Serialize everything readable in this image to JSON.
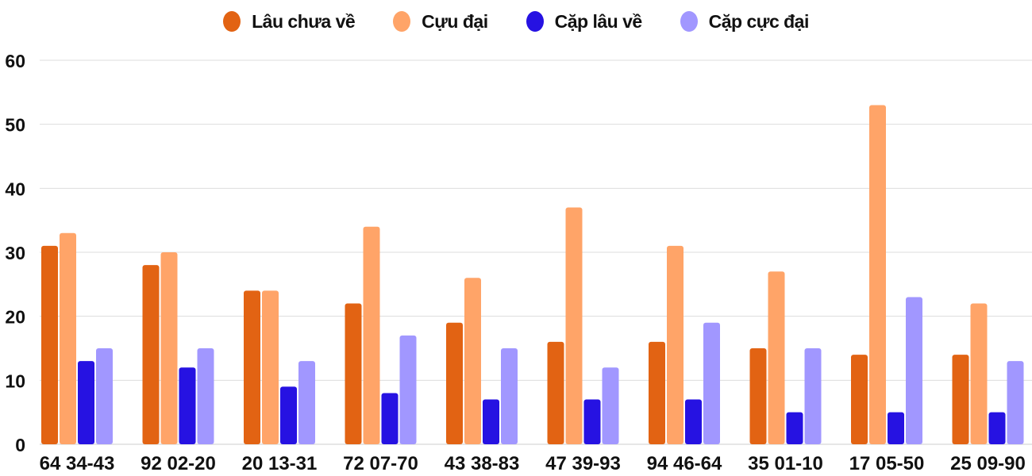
{
  "chart_data": {
    "type": "bar",
    "title": "",
    "xlabel": "",
    "ylabel": "",
    "ylim": [
      0,
      60
    ],
    "yticks": [
      0,
      10,
      20,
      30,
      40,
      50,
      60
    ],
    "grid": true,
    "legend_position": "top",
    "categories": [
      "64 34-43",
      "92 02-20",
      "20 13-31",
      "72 07-70",
      "43 38-83",
      "47 39-93",
      "94 46-64",
      "35 01-10",
      "17 05-50",
      "25 09-90"
    ],
    "series": [
      {
        "name": "Lâu chưa về",
        "color": "#E26313",
        "values": [
          31,
          28,
          24,
          22,
          19,
          16,
          16,
          15,
          14,
          14
        ]
      },
      {
        "name": "Cựu đại",
        "color": "#FFA468",
        "values": [
          33,
          30,
          24,
          34,
          26,
          37,
          31,
          27,
          53,
          22
        ]
      },
      {
        "name": "Cặp lâu về",
        "color": "#2612E2",
        "values": [
          13,
          12,
          9,
          8,
          7,
          7,
          7,
          5,
          5,
          5
        ]
      },
      {
        "name": "Cặp cực đại",
        "color": "#A197FF",
        "values": [
          15,
          15,
          13,
          17,
          15,
          12,
          19,
          15,
          23,
          13
        ]
      }
    ]
  },
  "legend": {
    "items": [
      {
        "label": "Lâu chưa về",
        "color": "#E26313"
      },
      {
        "label": "Cựu đại",
        "color": "#FFA468"
      },
      {
        "label": "Cặp lâu về",
        "color": "#2612E2"
      },
      {
        "label": "Cặp cực đại",
        "color": "#A197FF"
      }
    ]
  },
  "colors": {
    "grid": "#DDDDDD",
    "axis_text": "#111111"
  }
}
